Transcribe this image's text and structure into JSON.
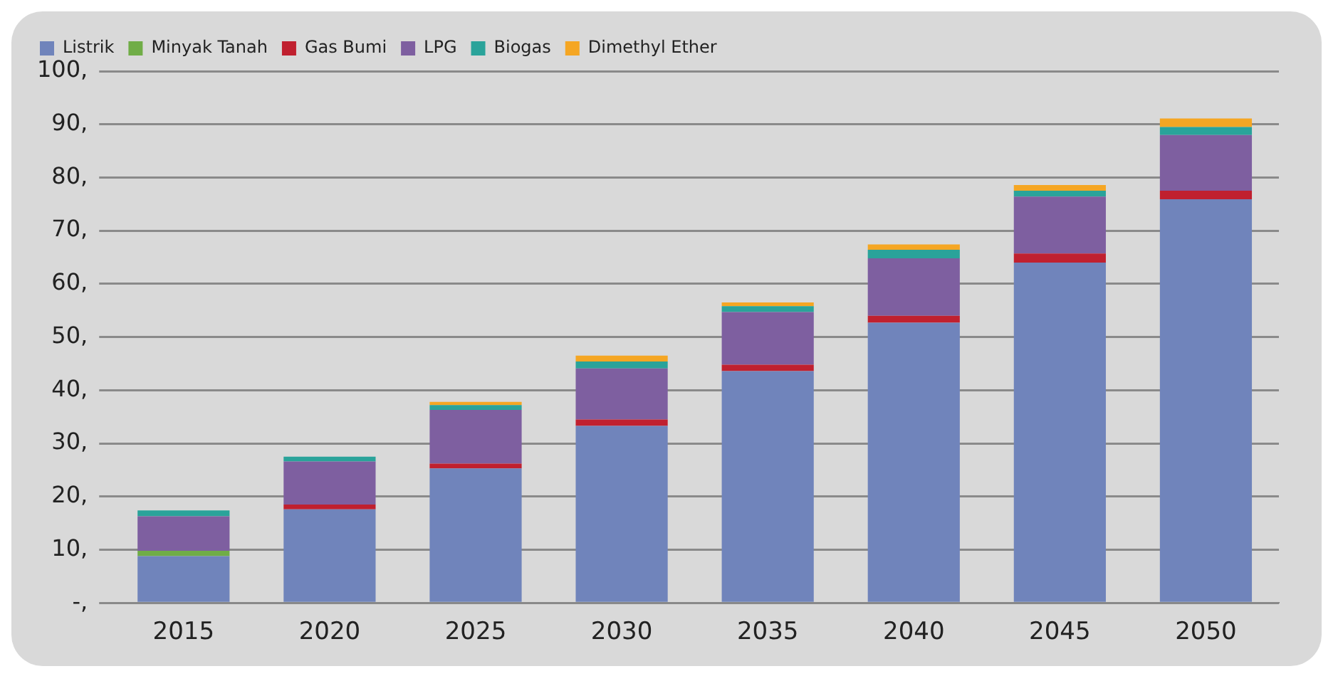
{
  "chart_data": {
    "type": "bar",
    "stacked": true,
    "categories": [
      "2015",
      "2020",
      "2025",
      "2030",
      "2035",
      "2040",
      "2045",
      "2050"
    ],
    "series": [
      {
        "name": "Listrik",
        "color": "#7084bb",
        "values": [
          8.8,
          17.6,
          25.3,
          33.3,
          43.6,
          52.7,
          64.0,
          75.9
        ]
      },
      {
        "name": "Minyak Tanah",
        "color": "#70ad47",
        "values": [
          1.0,
          0,
          0,
          0,
          0,
          0,
          0,
          0
        ]
      },
      {
        "name": "Gas Bumi",
        "color": "#c0202f",
        "values": [
          0,
          0.9,
          0.9,
          1.2,
          1.2,
          1.3,
          1.7,
          1.6
        ]
      },
      {
        "name": "LPG",
        "color": "#7e5fa0",
        "values": [
          6.5,
          8.1,
          10.1,
          9.6,
          9.9,
          10.8,
          10.7,
          10.5
        ]
      },
      {
        "name": "Biogas",
        "color": "#2aa39a",
        "values": [
          1.1,
          0.9,
          0.9,
          1.3,
          1.1,
          1.6,
          1.1,
          1.5
        ]
      },
      {
        "name": "Dimethyl Ether",
        "color": "#f5a623",
        "values": [
          0,
          0,
          0.6,
          1.1,
          0.7,
          1.0,
          1.1,
          1.6
        ]
      }
    ],
    "ylim": [
      0,
      100
    ],
    "yticks": [
      {
        "value": 0,
        "label": "-,"
      },
      {
        "value": 10,
        "label": "10,"
      },
      {
        "value": 20,
        "label": "20,"
      },
      {
        "value": 30,
        "label": "30,"
      },
      {
        "value": 40,
        "label": "40,"
      },
      {
        "value": 50,
        "label": "50,"
      },
      {
        "value": 60,
        "label": "60,"
      },
      {
        "value": 70,
        "label": "70,"
      },
      {
        "value": 80,
        "label": "80,"
      },
      {
        "value": 90,
        "label": "90,"
      },
      {
        "value": 100,
        "label": "100,"
      }
    ],
    "grid": "y",
    "legend": "top left"
  }
}
